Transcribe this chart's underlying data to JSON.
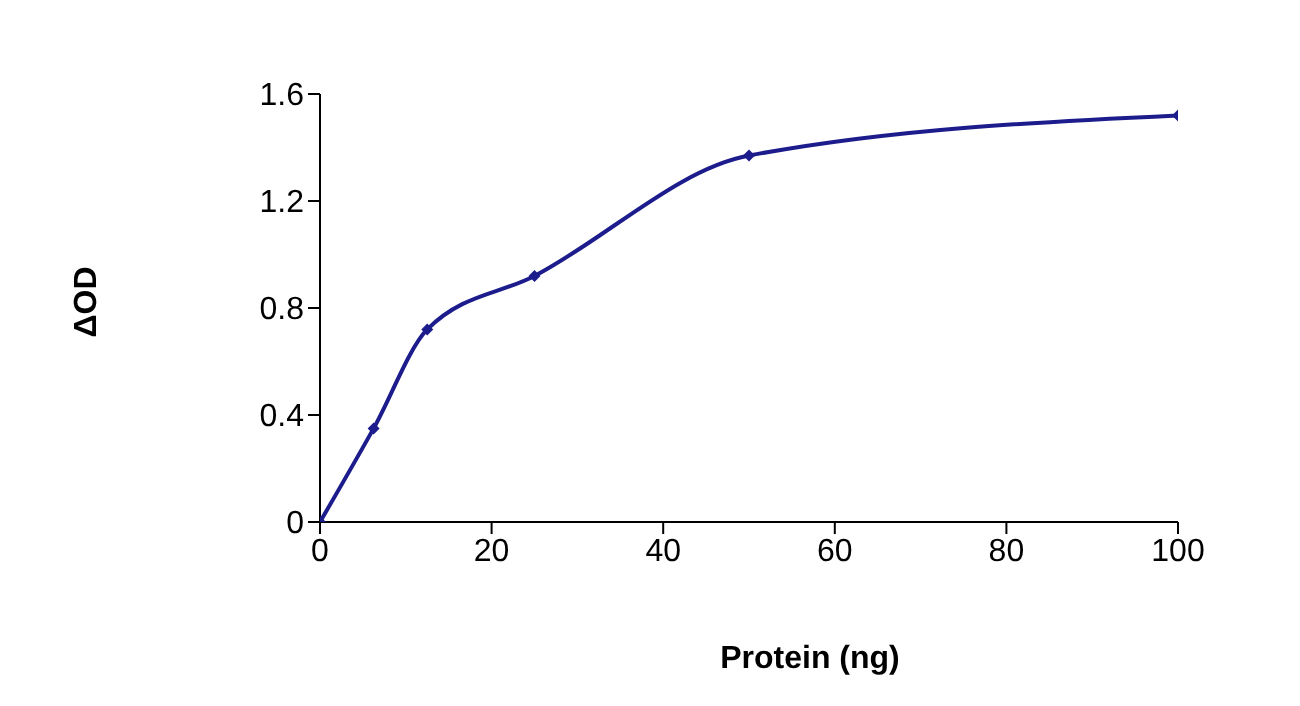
{
  "chart_data": {
    "type": "line",
    "xlabel": "Protein (ng)",
    "ylabel": "ΔOD",
    "x": [
      0,
      6.25,
      12.5,
      25,
      50,
      100
    ],
    "series": [
      {
        "color": "#1c1c8c",
        "values": [
          0,
          0.35,
          0.72,
          0.92,
          1.37,
          1.52
        ]
      }
    ],
    "xlim": [
      0,
      100
    ],
    "xticks": [
      0,
      20,
      40,
      60,
      80,
      100
    ],
    "ylim": [
      0,
      1.6
    ],
    "yticks": [
      0,
      0.4,
      0.8,
      1.2,
      1.6
    ],
    "grid": false,
    "legend": false,
    "marker": "diamond",
    "line_style": "solid"
  }
}
